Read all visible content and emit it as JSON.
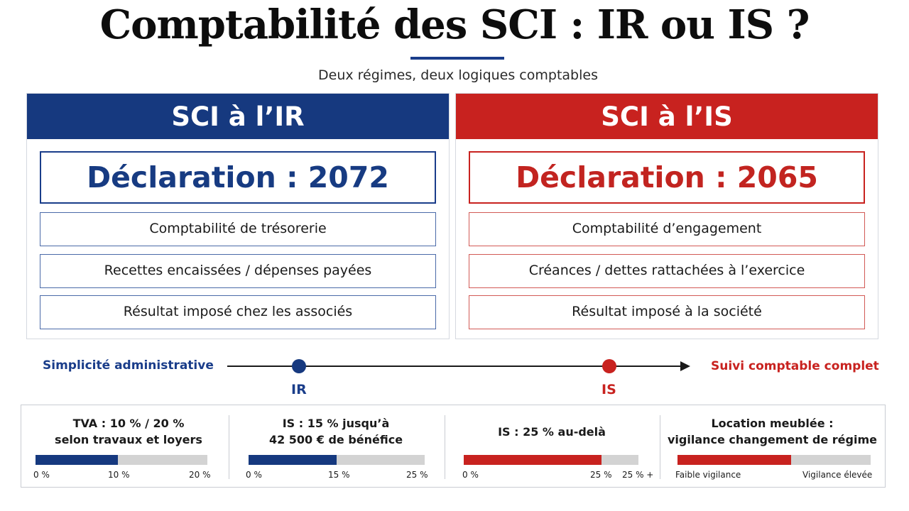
{
  "title": "Comptabilité des SCI : IR ou IS ?",
  "subtitle": "Deux régimes, deux logiques comptables",
  "colors": {
    "ir": "#16397f",
    "is": "#c8221f",
    "track": "#d3d3d3"
  },
  "ir": {
    "header": "SCI à l’IR",
    "declaration": "Déclaration : 2072",
    "rows": [
      "Comptabilité de trésorerie",
      "Recettes encaissées / dépenses payées",
      "Résultat imposé chez les associés"
    ]
  },
  "is": {
    "header": "SCI à l’IS",
    "declaration": "Déclaration : 2065",
    "rows": [
      "Comptabilité d’engagement",
      "Créances / dettes rattachées à l’exercice",
      "Résultat imposé à la société"
    ]
  },
  "scale": {
    "left_label": "Simplicité administrative",
    "right_label": "Suivi comptable complet",
    "markers": [
      "IR",
      "IS"
    ]
  },
  "indicators": [
    {
      "title": [
        "TVA : 10 % / 20 %",
        "selon travaux et loyers"
      ],
      "fill": 0.48,
      "color": "ir",
      "ticks": [
        "0 %",
        "10 %",
        "20 %"
      ]
    },
    {
      "title": [
        "IS : 15 % jusqu’à",
        "42 500 € de bénéfice"
      ],
      "fill": 0.5,
      "color": "ir",
      "ticks": [
        "0 %",
        "15 %",
        "25 %"
      ]
    },
    {
      "title": [
        "IS : 25 % au-delà"
      ],
      "fill": 0.79,
      "color": "is",
      "ticks": [
        "0 %",
        "25 %",
        "25 % +"
      ]
    },
    {
      "title": [
        "Location meublée :",
        "vigilance changement de régime"
      ],
      "fill": 0.59,
      "color": "is",
      "ticks": [
        "Faible vigilance",
        "Vigilance élevée"
      ]
    }
  ]
}
